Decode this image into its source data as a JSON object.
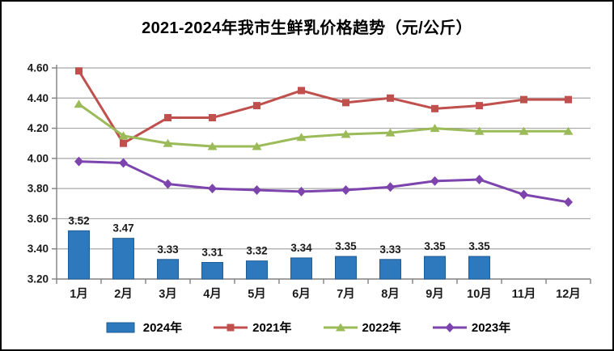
{
  "title": "2021-2024年我市生鲜乳价格趋势（元/公斤）",
  "chart_data": {
    "type": "combo-bar-line",
    "categories": [
      "1月",
      "2月",
      "3月",
      "4月",
      "5月",
      "6月",
      "7月",
      "8月",
      "9月",
      "10月",
      "11月",
      "12月"
    ],
    "y_axis": {
      "min": 3.2,
      "max": 4.6,
      "step": 0.2,
      "tick_labels": [
        "3.20",
        "3.40",
        "3.60",
        "3.80",
        "4.00",
        "4.20",
        "4.40",
        "4.60"
      ]
    },
    "grid": true,
    "legend_position": "bottom",
    "colors": {
      "grid": "#a6a6a6",
      "axis": "#808080",
      "text": "#1a1a1a"
    },
    "series": [
      {
        "name": "2024年",
        "type": "bar",
        "color": "#2e79bd",
        "border_color": "#1f5c94",
        "values": [
          3.52,
          3.47,
          3.33,
          3.31,
          3.32,
          3.34,
          3.35,
          3.33,
          3.35,
          3.35,
          null,
          null
        ],
        "data_labels": [
          "3.52",
          "3.47",
          "3.33",
          "3.31",
          "3.32",
          "3.34",
          "3.35",
          "3.33",
          "3.35",
          "3.35"
        ]
      },
      {
        "name": "2021年",
        "type": "line",
        "marker": "square",
        "color": "#c0504d",
        "values": [
          4.58,
          4.1,
          4.27,
          4.27,
          4.35,
          4.45,
          4.37,
          4.4,
          4.33,
          4.35,
          4.39,
          4.39
        ]
      },
      {
        "name": "2022年",
        "type": "line",
        "marker": "triangle",
        "color": "#9bbb59",
        "values": [
          4.36,
          4.15,
          4.1,
          4.08,
          4.08,
          4.14,
          4.16,
          4.17,
          4.2,
          4.18,
          4.18,
          4.18
        ]
      },
      {
        "name": "2023年",
        "type": "line",
        "marker": "diamond",
        "color": "#7d44ad",
        "values": [
          3.98,
          3.97,
          3.83,
          3.8,
          3.79,
          3.78,
          3.79,
          3.81,
          3.85,
          3.86,
          3.76,
          3.71
        ]
      }
    ]
  }
}
